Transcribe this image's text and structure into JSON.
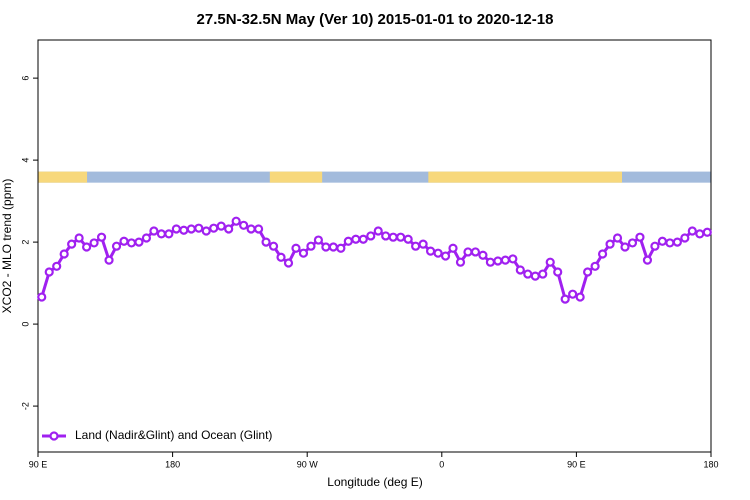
{
  "chart_data": {
    "type": "line",
    "title": "27.5N-32.5N May (Ver 10)   2015-01-01 to 2020-12-18",
    "xlabel": "Longitude (deg E)",
    "ylabel": "XCO2 - MLO trend (ppm)",
    "xlim": [
      90,
      540
    ],
    "xticks": [
      {
        "value": 90,
        "label": "90 E"
      },
      {
        "value": 180,
        "label": "180"
      },
      {
        "value": 270,
        "label": "90 W"
      },
      {
        "value": 360,
        "label": "0"
      },
      {
        "value": 450,
        "label": "90 E"
      },
      {
        "value": 540,
        "label": "180"
      }
    ],
    "ylim": [
      -3.12,
      6.93
    ],
    "yticks": [
      -2,
      0,
      2,
      4,
      6
    ],
    "legend": "bottom-left",
    "strip_y": [
      3.45,
      3.72
    ],
    "ocean_color": "#a3bbdc",
    "land_color": "#f7d87c",
    "land_segments": [
      [
        90,
        122.8
      ],
      [
        245,
        280
      ],
      [
        351,
        480.5
      ]
    ],
    "x": [
      92.5,
      97.5,
      102.5,
      107.5,
      112.5,
      117.5,
      122.5,
      127.5,
      132.5,
      137.5,
      142.5,
      147.5,
      152.5,
      157.5,
      162.5,
      167.5,
      172.5,
      177.5,
      182.5,
      187.5,
      192.5,
      197.5,
      202.5,
      207.5,
      212.5,
      217.5,
      222.5,
      227.5,
      232.5,
      237.5,
      242.5,
      247.5,
      252.5,
      257.5,
      262.5,
      267.5,
      272.5,
      277.5,
      282.5,
      287.5,
      292.5,
      297.5,
      302.5,
      307.5,
      312.5,
      317.5,
      322.5,
      327.5,
      332.5,
      337.5,
      342.5,
      347.5,
      352.5,
      357.5,
      362.5,
      367.5,
      372.5,
      377.5,
      382.5,
      387.5,
      392.5,
      397.5,
      402.5,
      407.5,
      412.5,
      417.5,
      422.5,
      427.5,
      432.5,
      437.5,
      442.5,
      447.5,
      452.5,
      457.5,
      462.5,
      467.5,
      472.5,
      477.5,
      482.5,
      487.5,
      492.5,
      497.5,
      502.5,
      507.5,
      512.5,
      517.5,
      522.5,
      527.5,
      532.5,
      537.5
    ],
    "series": [
      {
        "name": "Land (Nadir&Glint) and Ocean (Glint)",
        "color": "#a020f0",
        "values": [
          0.66,
          1.27,
          1.41,
          1.71,
          1.95,
          2.1,
          1.88,
          1.98,
          2.12,
          1.56,
          1.9,
          2.02,
          1.98,
          2.0,
          2.1,
          2.27,
          2.2,
          2.2,
          2.32,
          2.29,
          2.32,
          2.34,
          2.27,
          2.34,
          2.39,
          2.32,
          2.51,
          2.41,
          2.32,
          2.32,
          2.0,
          1.9,
          1.63,
          1.49,
          1.85,
          1.73,
          1.9,
          2.05,
          1.88,
          1.88,
          1.85,
          2.02,
          2.07,
          2.07,
          2.15,
          2.27,
          2.15,
          2.12,
          2.12,
          2.07,
          1.9,
          1.95,
          1.78,
          1.73,
          1.66,
          1.85,
          1.51,
          1.76,
          1.76,
          1.68,
          1.51,
          1.54,
          1.56,
          1.59,
          1.32,
          1.22,
          1.17,
          1.22,
          1.51,
          1.27,
          0.61,
          0.73,
          0.66,
          1.27,
          1.41,
          1.71,
          1.95,
          2.1,
          1.88,
          1.98,
          2.12,
          1.56,
          1.9,
          2.02,
          1.98,
          2.0,
          2.1,
          2.27,
          2.2,
          2.24
        ]
      }
    ]
  }
}
